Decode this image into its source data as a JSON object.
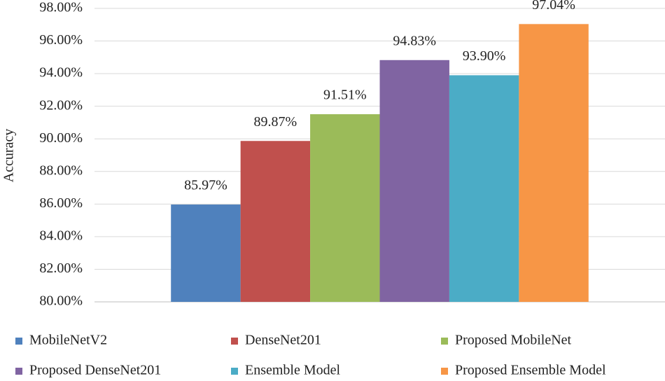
{
  "chart_data": {
    "type": "bar",
    "y_label": "Accuracy",
    "categories": [
      null
    ],
    "series": [
      {
        "name": "MobileNetV2",
        "color": "#4f81bd",
        "values": [
          85.97
        ],
        "value_labels": [
          "85.97%"
        ]
      },
      {
        "name": "DenseNet201",
        "color": "#c0504d",
        "values": [
          89.87
        ],
        "value_labels": [
          "89.87%"
        ]
      },
      {
        "name": "Proposed MobileNet",
        "color": "#9bbb59",
        "values": [
          91.51
        ],
        "value_labels": [
          "91.51%"
        ]
      },
      {
        "name": "Proposed DenseNet201",
        "color": "#8064a2",
        "values": [
          94.83
        ],
        "value_labels": [
          "94.83%"
        ]
      },
      {
        "name": "Ensemble Model",
        "color": "#4bacc6",
        "values": [
          93.9
        ],
        "value_labels": [
          "93.90%"
        ]
      },
      {
        "name": "Proposed Ensemble Model",
        "color": "#f79646",
        "values": [
          97.04
        ],
        "value_labels": [
          "97.04%"
        ]
      }
    ],
    "ylim": [
      80,
      98
    ],
    "yticks": [
      {
        "value": 80,
        "label": "80.00%"
      },
      {
        "value": 82,
        "label": "82.00%"
      },
      {
        "value": 84,
        "label": "84.00%"
      },
      {
        "value": 86,
        "label": "86.00%"
      },
      {
        "value": 88,
        "label": "88.00%"
      },
      {
        "value": 90,
        "label": "90.00%"
      },
      {
        "value": 92,
        "label": "92.00%"
      },
      {
        "value": 94,
        "label": "94.00%"
      },
      {
        "value": 96,
        "label": "96.00%"
      },
      {
        "value": 98,
        "label": "98.00%"
      }
    ],
    "grid": true,
    "legend": "bottom"
  }
}
